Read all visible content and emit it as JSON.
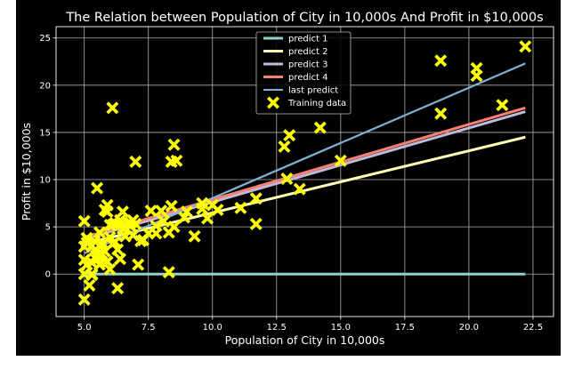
{
  "chart_data": {
    "type": "scatter",
    "title": "The Relation between Population of City in 10,000s And Profit in $10,000s",
    "xlabel": "Population of City in 10,000s",
    "ylabel": "Profit in $10,000s",
    "xlim": [
      3.9,
      23.3
    ],
    "ylim": [
      -4.5,
      26.2
    ],
    "xticks": [
      5.0,
      7.5,
      10.0,
      12.5,
      15.0,
      17.5,
      20.0,
      22.5
    ],
    "xtick_labels": [
      "5.0",
      "7.5",
      "10.0",
      "12.5",
      "15.0",
      "17.5",
      "20.0",
      "22.5"
    ],
    "yticks": [
      0,
      5,
      10,
      15,
      20,
      25
    ],
    "ytick_labels": [
      "0",
      "5",
      "10",
      "15",
      "20",
      "25"
    ],
    "grid": true,
    "legend_position": "top-center",
    "lines": [
      {
        "name": "predict 1",
        "color": "#8dd3c7",
        "x": [
          5.0,
          22.2
        ],
        "y": [
          0.0,
          0.0
        ]
      },
      {
        "name": "predict 2",
        "color": "#ffffb3",
        "x": [
          5.0,
          22.2
        ],
        "y": [
          3.2,
          14.5
        ]
      },
      {
        "name": "predict 3",
        "color": "#bebada",
        "x": [
          5.0,
          22.2
        ],
        "y": [
          3.7,
          17.2
        ]
      },
      {
        "name": "predict 4",
        "color": "#fa8072",
        "x": [
          5.0,
          22.2
        ],
        "y": [
          3.9,
          17.6
        ]
      },
      {
        "name": "last predict",
        "color": "#80b1d3",
        "x": [
          5.0,
          22.2
        ],
        "y": [
          2.2,
          22.3
        ]
      }
    ],
    "scatter": {
      "name": "Training data",
      "color": "#ffff00",
      "marker": "X",
      "points": [
        [
          6.1,
          17.6
        ],
        [
          5.5,
          9.1
        ],
        [
          8.5,
          13.7
        ],
        [
          7.0,
          11.9
        ],
        [
          5.8,
          6.8
        ],
        [
          8.4,
          11.9
        ],
        [
          7.5,
          4.3
        ],
        [
          8.6,
          12.0
        ],
        [
          6.5,
          6.6
        ],
        [
          5.1,
          3.8
        ],
        [
          5.7,
          3.3
        ],
        [
          14.2,
          15.5
        ],
        [
          5.7,
          3.1
        ],
        [
          8.4,
          7.2
        ],
        [
          6.4,
          5.7
        ],
        [
          5.4,
          3.5
        ],
        [
          6.8,
          5.4
        ],
        [
          6.2,
          5.4
        ],
        [
          6.2,
          3.4
        ],
        [
          5.6,
          3.0
        ],
        [
          13.0,
          14.7
        ],
        [
          6.9,
          4.1
        ],
        [
          5.0,
          2.9
        ],
        [
          6.4,
          5.4
        ],
        [
          5.6,
          4.4
        ],
        [
          5.4,
          2.5
        ],
        [
          5.1,
          3.3
        ],
        [
          9.3,
          4.0
        ],
        [
          5.5,
          1.5
        ],
        [
          6.1,
          5.2
        ],
        [
          5.9,
          6.6
        ],
        [
          5.1,
          1.0
        ],
        [
          6.7,
          5.4
        ],
        [
          6.0,
          5.2
        ],
        [
          5.1,
          3.8
        ],
        [
          5.3,
          1.2
        ],
        [
          6.8,
          5.1
        ],
        [
          8.3,
          0.2
        ],
        [
          6.9,
          5.7
        ],
        [
          5.9,
          7.3
        ],
        [
          5.0,
          0.0
        ],
        [
          5.0,
          5.6
        ],
        [
          6.3,
          2.6
        ],
        [
          6.0,
          3.9
        ],
        [
          5.0,
          1.5
        ],
        [
          6.3,
          -1.5
        ],
        [
          5.3,
          0.0
        ],
        [
          7.0,
          5.3
        ],
        [
          5.0,
          -2.7
        ],
        [
          5.3,
          -0.1
        ],
        [
          5.6,
          1.0
        ],
        [
          5.9,
          1.3
        ],
        [
          5.2,
          -1.2
        ],
        [
          6.4,
          1.6
        ],
        [
          7.1,
          1.0
        ],
        [
          7.6,
          6.7
        ],
        [
          7.8,
          4.3
        ],
        [
          8.0,
          6.7
        ],
        [
          8.3,
          4.4
        ],
        [
          8.9,
          6.0
        ],
        [
          9.6,
          7.5
        ],
        [
          9.8,
          5.9
        ],
        [
          10.2,
          6.8
        ],
        [
          11.1,
          7.0
        ],
        [
          11.7,
          5.3
        ],
        [
          11.7,
          8.0
        ],
        [
          12.8,
          13.5
        ],
        [
          13.4,
          9.0
        ],
        [
          12.9,
          10.1
        ],
        [
          15.0,
          12.0
        ],
        [
          18.9,
          17.0
        ],
        [
          20.3,
          21.8
        ],
        [
          20.3,
          21.0
        ],
        [
          21.3,
          17.9
        ],
        [
          18.9,
          22.6
        ],
        [
          22.2,
          24.1
        ],
        [
          5.3,
          3.0
        ],
        [
          5.5,
          2.0
        ],
        [
          5.8,
          2.4
        ],
        [
          6.0,
          0.5
        ],
        [
          6.1,
          3.2
        ],
        [
          6.5,
          4.8
        ],
        [
          7.3,
          3.6
        ],
        [
          7.8,
          5.1
        ],
        [
          8.1,
          5.6
        ],
        [
          8.5,
          5.0
        ],
        [
          9.0,
          6.6
        ],
        [
          9.6,
          6.9
        ],
        [
          10.0,
          7.3
        ],
        [
          7.2,
          3.5
        ],
        [
          6.6,
          4.0
        ],
        [
          5.7,
          2.1
        ]
      ]
    }
  }
}
